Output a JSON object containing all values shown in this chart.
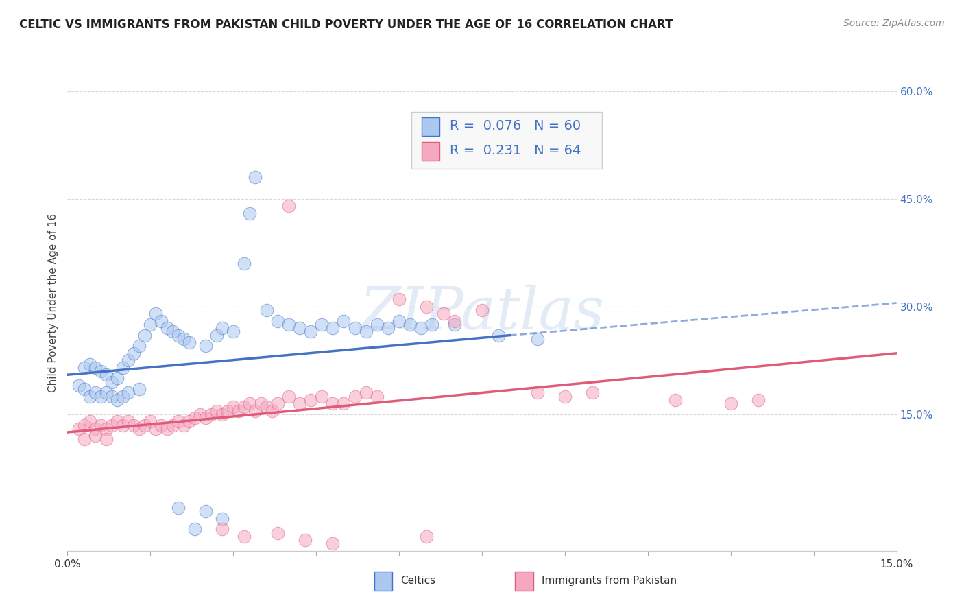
{
  "title": "CELTIC VS IMMIGRANTS FROM PAKISTAN CHILD POVERTY UNDER THE AGE OF 16 CORRELATION CHART",
  "source": "Source: ZipAtlas.com",
  "ylabel": "Child Poverty Under the Age of 16",
  "xlim": [
    0.0,
    0.15
  ],
  "ylim": [
    -0.04,
    0.65
  ],
  "xtick_labels": [
    "0.0%",
    "",
    "",
    "",
    "",
    "",
    "",
    "",
    "",
    "",
    "15.0%"
  ],
  "xtick_positions": [
    0.0,
    0.015,
    0.03,
    0.045,
    0.06,
    0.075,
    0.09,
    0.105,
    0.12,
    0.135,
    0.15
  ],
  "ytick_labels": [
    "15.0%",
    "30.0%",
    "45.0%",
    "60.0%"
  ],
  "ytick_positions": [
    0.15,
    0.3,
    0.45,
    0.6
  ],
  "background_color": "#ffffff",
  "grid_color": "#d8d8d8",
  "watermark_text": "ZIPatlas",
  "celtics_scatter": [
    [
      0.002,
      0.19
    ],
    [
      0.003,
      0.215
    ],
    [
      0.004,
      0.22
    ],
    [
      0.005,
      0.215
    ],
    [
      0.006,
      0.21
    ],
    [
      0.007,
      0.205
    ],
    [
      0.008,
      0.195
    ],
    [
      0.009,
      0.2
    ],
    [
      0.01,
      0.215
    ],
    [
      0.011,
      0.225
    ],
    [
      0.012,
      0.235
    ],
    [
      0.013,
      0.245
    ],
    [
      0.014,
      0.26
    ],
    [
      0.015,
      0.275
    ],
    [
      0.016,
      0.29
    ],
    [
      0.017,
      0.28
    ],
    [
      0.018,
      0.27
    ],
    [
      0.019,
      0.265
    ],
    [
      0.02,
      0.26
    ],
    [
      0.021,
      0.255
    ],
    [
      0.022,
      0.25
    ],
    [
      0.025,
      0.245
    ],
    [
      0.027,
      0.26
    ],
    [
      0.028,
      0.27
    ],
    [
      0.03,
      0.265
    ],
    [
      0.032,
      0.36
    ],
    [
      0.033,
      0.43
    ],
    [
      0.034,
      0.48
    ],
    [
      0.036,
      0.295
    ],
    [
      0.038,
      0.28
    ],
    [
      0.04,
      0.275
    ],
    [
      0.042,
      0.27
    ],
    [
      0.044,
      0.265
    ],
    [
      0.046,
      0.275
    ],
    [
      0.048,
      0.27
    ],
    [
      0.05,
      0.28
    ],
    [
      0.052,
      0.27
    ],
    [
      0.054,
      0.265
    ],
    [
      0.056,
      0.275
    ],
    [
      0.058,
      0.27
    ],
    [
      0.06,
      0.28
    ],
    [
      0.062,
      0.275
    ],
    [
      0.064,
      0.27
    ],
    [
      0.066,
      0.275
    ],
    [
      0.07,
      0.275
    ],
    [
      0.078,
      0.26
    ],
    [
      0.085,
      0.255
    ],
    [
      0.003,
      0.185
    ],
    [
      0.004,
      0.175
    ],
    [
      0.005,
      0.18
    ],
    [
      0.006,
      0.175
    ],
    [
      0.007,
      0.18
    ],
    [
      0.008,
      0.175
    ],
    [
      0.009,
      0.17
    ],
    [
      0.01,
      0.175
    ],
    [
      0.011,
      0.18
    ],
    [
      0.013,
      0.185
    ],
    [
      0.02,
      0.02
    ],
    [
      0.023,
      -0.01
    ],
    [
      0.025,
      0.015
    ],
    [
      0.028,
      0.005
    ]
  ],
  "pakistan_scatter": [
    [
      0.002,
      0.13
    ],
    [
      0.003,
      0.135
    ],
    [
      0.004,
      0.14
    ],
    [
      0.005,
      0.13
    ],
    [
      0.006,
      0.135
    ],
    [
      0.007,
      0.13
    ],
    [
      0.008,
      0.135
    ],
    [
      0.009,
      0.14
    ],
    [
      0.01,
      0.135
    ],
    [
      0.011,
      0.14
    ],
    [
      0.012,
      0.135
    ],
    [
      0.013,
      0.13
    ],
    [
      0.014,
      0.135
    ],
    [
      0.015,
      0.14
    ],
    [
      0.016,
      0.13
    ],
    [
      0.017,
      0.135
    ],
    [
      0.018,
      0.13
    ],
    [
      0.019,
      0.135
    ],
    [
      0.02,
      0.14
    ],
    [
      0.021,
      0.135
    ],
    [
      0.022,
      0.14
    ],
    [
      0.023,
      0.145
    ],
    [
      0.024,
      0.15
    ],
    [
      0.025,
      0.145
    ],
    [
      0.026,
      0.15
    ],
    [
      0.027,
      0.155
    ],
    [
      0.028,
      0.15
    ],
    [
      0.029,
      0.155
    ],
    [
      0.03,
      0.16
    ],
    [
      0.031,
      0.155
    ],
    [
      0.032,
      0.16
    ],
    [
      0.033,
      0.165
    ],
    [
      0.034,
      0.155
    ],
    [
      0.035,
      0.165
    ],
    [
      0.036,
      0.16
    ],
    [
      0.037,
      0.155
    ],
    [
      0.038,
      0.165
    ],
    [
      0.04,
      0.175
    ],
    [
      0.042,
      0.165
    ],
    [
      0.044,
      0.17
    ],
    [
      0.046,
      0.175
    ],
    [
      0.048,
      0.165
    ],
    [
      0.05,
      0.165
    ],
    [
      0.052,
      0.175
    ],
    [
      0.054,
      0.18
    ],
    [
      0.056,
      0.175
    ],
    [
      0.04,
      0.44
    ],
    [
      0.06,
      0.31
    ],
    [
      0.065,
      0.3
    ],
    [
      0.068,
      0.29
    ],
    [
      0.07,
      0.28
    ],
    [
      0.075,
      0.295
    ],
    [
      0.085,
      0.18
    ],
    [
      0.09,
      0.175
    ],
    [
      0.095,
      0.18
    ],
    [
      0.11,
      0.17
    ],
    [
      0.12,
      0.165
    ],
    [
      0.125,
      0.17
    ],
    [
      0.003,
      0.115
    ],
    [
      0.005,
      0.12
    ],
    [
      0.007,
      0.115
    ],
    [
      0.028,
      -0.01
    ],
    [
      0.032,
      -0.02
    ],
    [
      0.038,
      -0.015
    ],
    [
      0.043,
      -0.025
    ],
    [
      0.048,
      -0.03
    ],
    [
      0.065,
      -0.02
    ]
  ],
  "celtics_line_solid": {
    "x0": 0.0,
    "y0": 0.205,
    "x1": 0.08,
    "y1": 0.26
  },
  "celtics_line_dashed": {
    "x0": 0.08,
    "y0": 0.26,
    "x1": 0.15,
    "y1": 0.305
  },
  "pakistan_line": {
    "x0": 0.0,
    "y0": 0.125,
    "x1": 0.15,
    "y1": 0.235
  },
  "celtics_color": "#4472c4",
  "pakistan_color": "#e05a7a",
  "celtics_dot_color": "#aac8f0",
  "pakistan_dot_color": "#f5a8c0",
  "title_fontsize": 12,
  "axis_label_fontsize": 11,
  "tick_fontsize": 11,
  "legend_fontsize": 14,
  "scatter_size": 180,
  "scatter_alpha": 0.55
}
